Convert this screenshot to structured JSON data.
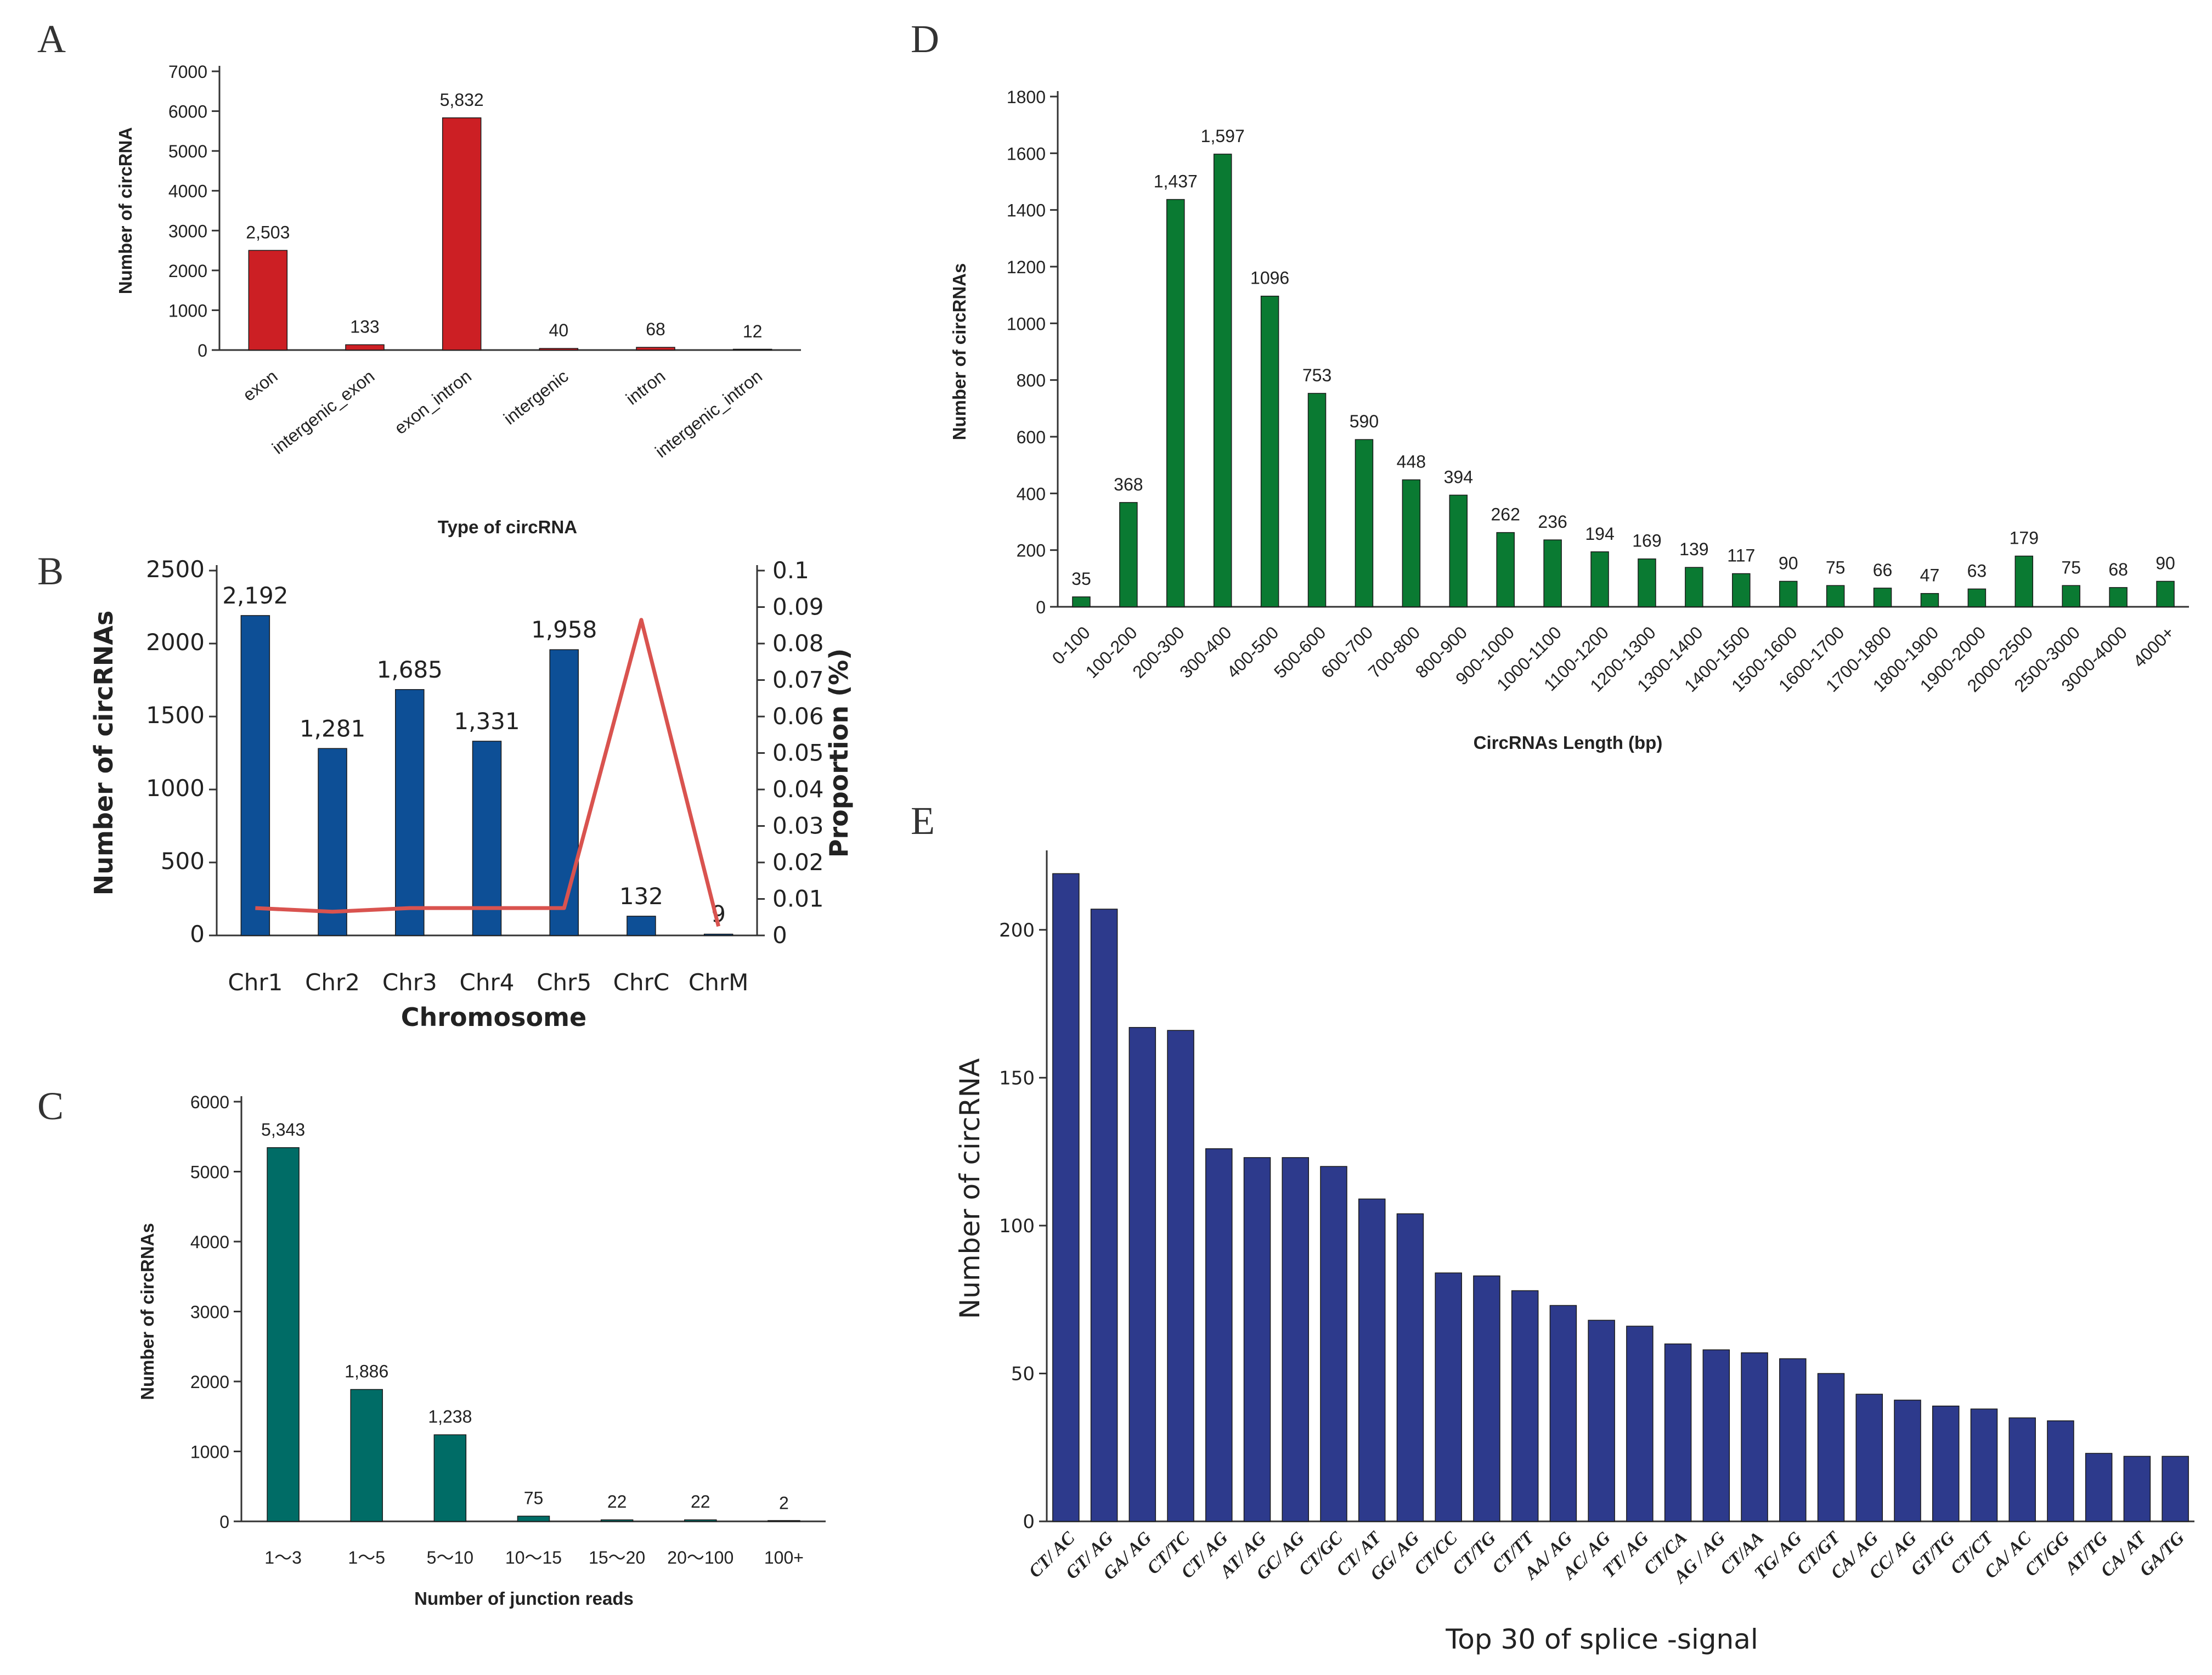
{
  "chart_data": [
    {
      "panel": "A",
      "type": "bar",
      "title": "",
      "xlabel": "Type of circRNA",
      "ylabel": "Number of circRNA",
      "categories": [
        "exon",
        "intergenic_exon",
        "exon_intron",
        "intergenic",
        "intron",
        "intergenic_intron"
      ],
      "values": [
        2503,
        133,
        5832,
        40,
        68,
        12
      ],
      "value_labels": [
        "2,503",
        "133",
        "5,832",
        "40",
        "68",
        "12"
      ],
      "yticks": [
        "0",
        "1000",
        "2000",
        "3000",
        "4000",
        "5000",
        "6000",
        "7000"
      ],
      "ylim": [
        0,
        7000
      ],
      "color": "#cc1f24"
    },
    {
      "panel": "B",
      "type": "bar",
      "title": "",
      "xlabel": "Chromosome",
      "ylabel": "Number of circRNAs",
      "y2label": "Proportion (%)",
      "categories": [
        "Chr1",
        "Chr2",
        "Chr3",
        "Chr4",
        "Chr5",
        "ChrC",
        "ChrM"
      ],
      "values": [
        2192,
        1281,
        1685,
        1331,
        1958,
        132,
        9
      ],
      "value_labels": [
        "2,192",
        "1,281",
        "1,685",
        "1,331",
        "1,958",
        "132",
        "9"
      ],
      "yticks": [
        "0",
        "500",
        "1000",
        "1500",
        "2000",
        "2500"
      ],
      "ylim": [
        0,
        2500
      ],
      "y2ticks": [
        "0",
        "0.01",
        "0.02",
        "0.03",
        "0.04",
        "0.05",
        "0.06",
        "0.07",
        "0.08",
        "0.09",
        "0.1"
      ],
      "y2lim": [
        0,
        0.1
      ],
      "line_series": {
        "name": "Proportion",
        "values": [
          0.0075,
          0.0065,
          0.0075,
          0.0075,
          0.0075,
          0.0865,
          0.0025
        ],
        "color": "#d9534f"
      },
      "color": "#0d4f96"
    },
    {
      "panel": "C",
      "type": "bar",
      "title": "",
      "xlabel": "Number of junction reads",
      "ylabel": "Number of circRNAs",
      "categories": [
        "1～3",
        "1～5",
        "5～10",
        "10～15",
        "15～20",
        "20～100",
        "100+"
      ],
      "values": [
        5343,
        1886,
        1238,
        75,
        22,
        22,
        2
      ],
      "value_labels": [
        "5,343",
        "1,886",
        "1,238",
        "75",
        "22",
        "22",
        "2"
      ],
      "yticks": [
        "0",
        "1000",
        "2000",
        "3000",
        "4000",
        "5000",
        "6000"
      ],
      "ylim": [
        0,
        6000
      ],
      "color": "#006c66"
    },
    {
      "panel": "D",
      "type": "bar",
      "title": "",
      "xlabel": "CircRNAs Length (bp)",
      "ylabel": "Number of circRNAs",
      "categories": [
        "0-100",
        "100-200",
        "200-300",
        "300-400",
        "400-500",
        "500-600",
        "600-700",
        "700-800",
        "800-900",
        "900-1000",
        "1000-1100",
        "1100-1200",
        "1200-1300",
        "1300-1400",
        "1400-1500",
        "1500-1600",
        "1600-1700",
        "1700-1800",
        "1800-1900",
        "1900-2000",
        "2000-2500",
        "2500-3000",
        "3000-4000",
        "4000+"
      ],
      "values": [
        35,
        368,
        1437,
        1597,
        1096,
        753,
        590,
        448,
        394,
        262,
        236,
        194,
        169,
        139,
        117,
        90,
        75,
        66,
        47,
        63,
        179,
        75,
        68,
        90
      ],
      "value_labels": [
        "35",
        "368",
        "1,437",
        "1,597",
        "1096",
        "753",
        "590",
        "448",
        "394",
        "262",
        "236",
        "194",
        "169",
        "139",
        "117",
        "90",
        "75",
        "66",
        "47",
        "63",
        "179",
        "75",
        "68",
        "90"
      ],
      "yticks": [
        "0",
        "200",
        "400",
        "600",
        "800",
        "1000",
        "1200",
        "1400",
        "1600",
        "1800"
      ],
      "ylim": [
        0,
        1800
      ],
      "color": "#0a7a32"
    },
    {
      "panel": "E",
      "type": "bar",
      "title": "",
      "xlabel": "Top 30 of splice -signal",
      "ylabel": "Number of circRNA",
      "categories": [
        "CT/ AC",
        "GT/ AG",
        "GA/ AG",
        "CT/TC",
        "CT/ AG",
        "AT/ AG",
        "GC/ AG",
        "CT/GC",
        "CT/ AT",
        "GG/ AG",
        "CT/CC",
        "CT/TG",
        "CT/TT",
        "AA/ AG",
        "AC/ AG",
        "TT/ AG",
        "CT/CA",
        "AG / AG",
        "CT/AA",
        "TG/ AG",
        "CT/GT",
        "CA/ AG",
        "CC/ AG",
        "GT/TG",
        "CT/CT",
        "CA/ AC",
        "CT/GG",
        "AT/TG",
        "CA/ AT",
        "GA/TG"
      ],
      "values": [
        219,
        207,
        167,
        166,
        126,
        123,
        123,
        120,
        109,
        104,
        84,
        83,
        78,
        73,
        68,
        66,
        60,
        58,
        57,
        55,
        50,
        43,
        41,
        39,
        38,
        35,
        34,
        23,
        22,
        22
      ],
      "yticks": [
        "0",
        "50",
        "100",
        "150",
        "200"
      ],
      "ylim": [
        0,
        225
      ],
      "color": "#2d3a8c"
    }
  ]
}
